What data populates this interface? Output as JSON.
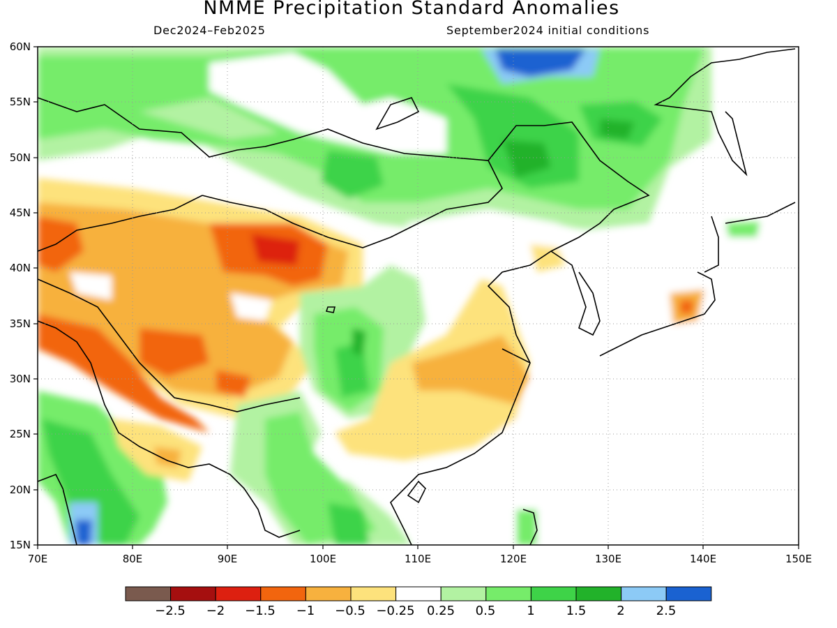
{
  "title": "NMME Precipitation Standard Anomalies",
  "subtitle_left": "Dec2024–Feb2025",
  "subtitle_right": "September2024 initial conditions",
  "map": {
    "projection": "lat-lon",
    "lon_range": [
      70,
      150
    ],
    "lat_range": [
      15,
      60
    ],
    "lat_labels": [
      "60N",
      "55N",
      "50N",
      "45N",
      "40N",
      "35N",
      "30N",
      "25N",
      "20N",
      "15N"
    ],
    "lon_labels": [
      "70E",
      "80E",
      "90E",
      "100E",
      "110E",
      "120E",
      "130E",
      "140E",
      "150E"
    ],
    "grid": "dotted"
  },
  "colorbar": {
    "colors": [
      "#7a5a4e",
      "#a50f0f",
      "#dd2010",
      "#f2650e",
      "#f7b13e",
      "#fde27c",
      "#ffffff",
      "#b2f2a2",
      "#76ec6a",
      "#3ed348",
      "#22b22a",
      "#8ccaf6",
      "#1a62d1"
    ],
    "labels": [
      "−2.5",
      "−2",
      "−1.5",
      "−1",
      "−0.5",
      "−0.25",
      "0.25",
      "0.5",
      "1",
      "1.5",
      "2",
      "2.5"
    ]
  }
}
